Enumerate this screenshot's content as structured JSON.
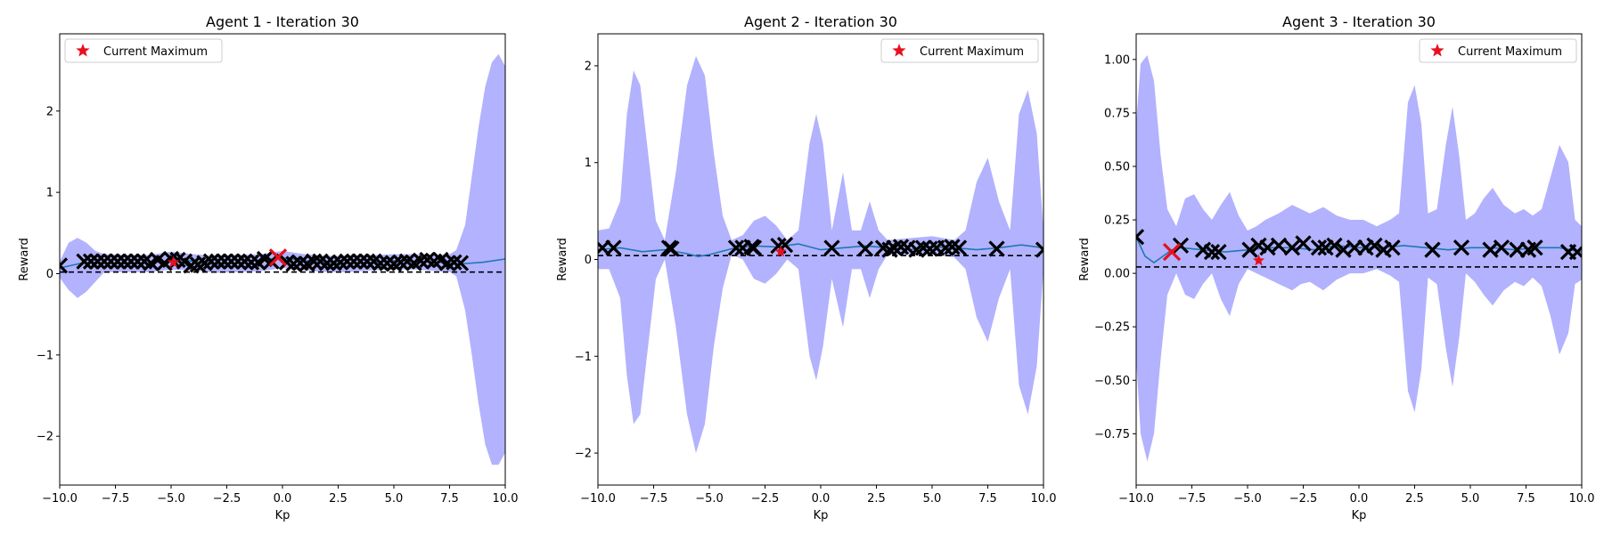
{
  "chart_data": [
    {
      "type": "line",
      "title": "Agent 1 - Iteration 30",
      "xlabel": "Kp",
      "ylabel": "Reward",
      "xlim": [
        -10,
        10
      ],
      "ylim": [
        -2.6,
        2.95
      ],
      "xticks": [
        -10,
        -7.5,
        -5,
        -2.5,
        0,
        2.5,
        5,
        7.5,
        10
      ],
      "xtick_labels": [
        "−10.0",
        "−7.5",
        "−5.0",
        "−2.5",
        "0.0",
        "2.5",
        "5.0",
        "7.5",
        "10.0"
      ],
      "yticks": [
        -2,
        -1,
        0,
        1,
        2
      ],
      "ytick_labels": [
        "−2",
        "−1",
        "0",
        "1",
        "2"
      ],
      "grid": false,
      "legend": {
        "entries": [
          "Current Maximum"
        ],
        "position": "top-left"
      },
      "colors": {
        "mean": "#1f77b4",
        "band": "#b2b2fe",
        "samples": "#000000",
        "maximum": "#e8101e",
        "latest": "#e8101e"
      },
      "baseline_y": 0.02,
      "mean_curve": {
        "x": [
          -10,
          -9.5,
          -9,
          -8.5,
          -8,
          -7,
          -6,
          -5,
          -4.5,
          -4,
          -3,
          -2,
          -1.5,
          -1,
          0,
          1,
          2,
          3,
          4,
          5,
          6,
          7,
          8,
          9,
          10
        ],
        "y": [
          0.07,
          0.1,
          0.13,
          0.14,
          0.13,
          0.12,
          0.13,
          0.16,
          0.17,
          0.15,
          0.11,
          0.13,
          0.16,
          0.17,
          0.19,
          0.16,
          0.13,
          0.13,
          0.14,
          0.16,
          0.15,
          0.14,
          0.12,
          0.14,
          0.18
        ]
      },
      "band": {
        "x": [
          -10,
          -9.6,
          -9.2,
          -8.8,
          -8.4,
          -8,
          -7,
          -6,
          -5,
          -4,
          -3,
          -2,
          -1,
          0,
          1,
          2,
          3,
          4,
          5,
          6,
          7,
          7.5,
          7.8,
          8.2,
          8.5,
          8.8,
          9.1,
          9.4,
          9.7,
          10
        ],
        "upper": [
          0.15,
          0.38,
          0.44,
          0.38,
          0.28,
          0.24,
          0.23,
          0.23,
          0.27,
          0.24,
          0.22,
          0.23,
          0.24,
          0.28,
          0.24,
          0.22,
          0.22,
          0.23,
          0.24,
          0.24,
          0.23,
          0.24,
          0.29,
          0.6,
          1.2,
          1.8,
          2.3,
          2.6,
          2.7,
          2.55
        ],
        "lower": [
          -0.05,
          -0.2,
          -0.3,
          -0.22,
          -0.1,
          0.02,
          0.02,
          0.02,
          0.05,
          0.04,
          0.01,
          0.02,
          0.03,
          0.07,
          0.04,
          0.02,
          0.02,
          0.04,
          0.05,
          0.05,
          0.03,
          0.02,
          -0.03,
          -0.45,
          -1.0,
          -1.6,
          -2.1,
          -2.35,
          -2.35,
          -2.2
        ]
      },
      "samples": {
        "x": [
          -10.0,
          -8.9,
          -8.6,
          -8.3,
          -8.0,
          -7.7,
          -7.4,
          -7.1,
          -6.8,
          -6.5,
          -6.2,
          -5.9,
          -5.6,
          -5.3,
          -5.0,
          -4.7,
          -4.4,
          -4.1,
          -3.8,
          -3.5,
          -3.2,
          -2.9,
          -2.6,
          -2.3,
          -2.0,
          -1.7,
          -1.4,
          -1.1,
          -0.8,
          -0.5,
          0.2,
          0.5,
          0.8,
          1.1,
          1.4,
          1.7,
          2.0,
          2.3,
          2.6,
          2.9,
          3.2,
          3.5,
          3.8,
          4.1,
          4.4,
          4.7,
          5.0,
          5.3,
          5.6,
          5.9,
          6.2,
          6.5,
          6.8,
          7.1,
          7.4,
          7.7,
          8.0
        ],
        "y": [
          0.1,
          0.15,
          0.15,
          0.15,
          0.15,
          0.15,
          0.15,
          0.15,
          0.15,
          0.15,
          0.15,
          0.13,
          0.17,
          0.13,
          0.18,
          0.17,
          0.15,
          0.1,
          0.11,
          0.13,
          0.15,
          0.15,
          0.15,
          0.15,
          0.15,
          0.15,
          0.14,
          0.14,
          0.18,
          0.15,
          0.14,
          0.12,
          0.13,
          0.12,
          0.15,
          0.15,
          0.13,
          0.13,
          0.14,
          0.15,
          0.15,
          0.15,
          0.15,
          0.15,
          0.13,
          0.13,
          0.12,
          0.14,
          0.15,
          0.13,
          0.16,
          0.17,
          0.15,
          0.17,
          0.13,
          0.14,
          0.13
        ]
      },
      "current_maximum": {
        "x": -4.9,
        "y": 0.14
      },
      "latest_sample": {
        "x": -0.2,
        "y": 0.2
      }
    },
    {
      "type": "line",
      "title": "Agent 2 - Iteration 30",
      "xlabel": "Kp",
      "ylabel": "Reward",
      "xlim": [
        -10,
        10
      ],
      "ylim": [
        -2.33,
        2.33
      ],
      "xticks": [
        -10,
        -7.5,
        -5,
        -2.5,
        0,
        2.5,
        5,
        7.5,
        10
      ],
      "xtick_labels": [
        "−10.0",
        "−7.5",
        "−5.0",
        "−2.5",
        "0.0",
        "2.5",
        "5.0",
        "7.5",
        "10.0"
      ],
      "yticks": [
        -2,
        -1,
        0,
        1,
        2
      ],
      "ytick_labels": [
        "−2",
        "−1",
        "0",
        "1",
        "2"
      ],
      "grid": false,
      "legend": {
        "entries": [
          "Current Maximum"
        ],
        "position": "top-right"
      },
      "colors": {
        "mean": "#1f77b4",
        "band": "#b2b2fe",
        "samples": "#000000",
        "maximum": "#e8101e"
      },
      "baseline_y": 0.04,
      "mean_curve": {
        "x": [
          -10,
          -9,
          -8,
          -7,
          -6,
          -5.5,
          -5,
          -4,
          -3,
          -2,
          -1,
          0,
          1,
          2,
          3,
          4,
          5,
          6,
          7,
          8,
          9,
          10
        ],
        "y": [
          0.1,
          0.12,
          0.08,
          0.1,
          0.06,
          0.03,
          0.05,
          0.11,
          0.14,
          0.13,
          0.16,
          0.1,
          0.12,
          0.14,
          0.12,
          0.1,
          0.13,
          0.12,
          0.1,
          0.12,
          0.15,
          0.12
        ]
      },
      "band": {
        "x": [
          -10,
          -9.5,
          -9,
          -8.7,
          -8.4,
          -8.1,
          -7.8,
          -7.4,
          -7.0,
          -6.5,
          -6.0,
          -5.6,
          -5.2,
          -4.8,
          -4.4,
          -4.0,
          -3.5,
          -3.0,
          -2.5,
          -2.0,
          -1.5,
          -1.0,
          -0.5,
          -0.2,
          0.1,
          0.5,
          1.0,
          1.4,
          1.8,
          2.2,
          2.6,
          3.0,
          4.0,
          5.0,
          6.0,
          6.5,
          7.0,
          7.5,
          8.0,
          8.5,
          8.9,
          9.3,
          9.7,
          10
        ],
        "upper": [
          0.3,
          0.32,
          0.6,
          1.5,
          1.95,
          1.8,
          1.2,
          0.4,
          0.2,
          0.9,
          1.8,
          2.1,
          1.9,
          1.1,
          0.45,
          0.2,
          0.25,
          0.4,
          0.45,
          0.35,
          0.2,
          0.3,
          1.2,
          1.5,
          1.2,
          0.3,
          0.9,
          0.3,
          0.3,
          0.6,
          0.3,
          0.2,
          0.22,
          0.24,
          0.2,
          0.3,
          0.8,
          1.05,
          0.6,
          0.3,
          1.5,
          1.75,
          1.3,
          0.3
        ],
        "lower": [
          -0.1,
          -0.1,
          -0.4,
          -1.2,
          -1.7,
          -1.6,
          -1.0,
          -0.2,
          0.0,
          -0.7,
          -1.6,
          -2.0,
          -1.7,
          -0.9,
          -0.3,
          0.05,
          0.0,
          -0.2,
          -0.25,
          -0.15,
          0.0,
          -0.1,
          -1.0,
          -1.25,
          -0.9,
          -0.2,
          -0.7,
          -0.1,
          -0.1,
          -0.4,
          -0.1,
          0.05,
          0.05,
          0.05,
          0.02,
          -0.1,
          -0.6,
          -0.85,
          -0.4,
          -0.1,
          -1.3,
          -1.6,
          -1.1,
          -0.1
        ]
      },
      "samples": {
        "x": [
          -9.8,
          -9.3,
          -6.8,
          -6.7,
          -3.8,
          -3.5,
          -3.1,
          -3.0,
          -1.9,
          -1.6,
          0.5,
          2.0,
          2.8,
          3.1,
          3.3,
          3.6,
          3.9,
          4.3,
          4.6,
          4.9,
          5.2,
          5.6,
          5.9,
          6.2,
          7.9,
          10.0
        ],
        "y": [
          0.12,
          0.12,
          0.12,
          0.11,
          0.12,
          0.12,
          0.13,
          0.12,
          0.14,
          0.15,
          0.12,
          0.11,
          0.12,
          0.1,
          0.12,
          0.13,
          0.12,
          0.1,
          0.12,
          0.11,
          0.12,
          0.12,
          0.13,
          0.12,
          0.11,
          0.1
        ]
      },
      "current_maximum": {
        "x": -1.8,
        "y": 0.08
      }
    },
    {
      "type": "line",
      "title": "Agent 3 - Iteration 30",
      "xlabel": "Kp",
      "ylabel": "Reward",
      "xlim": [
        -10,
        10
      ],
      "ylim": [
        -0.99,
        1.12
      ],
      "xticks": [
        -10,
        -7.5,
        -5,
        -2.5,
        0,
        2.5,
        5,
        7.5,
        10
      ],
      "xtick_labels": [
        "−10.0",
        "−7.5",
        "−5.0",
        "−2.5",
        "0.0",
        "2.5",
        "5.0",
        "7.5",
        "10.0"
      ],
      "yticks": [
        -0.75,
        -0.5,
        -0.25,
        0,
        0.25,
        0.5,
        0.75,
        1.0
      ],
      "ytick_labels": [
        "−0.75",
        "−0.50",
        "−0.25",
        "0.00",
        "0.25",
        "0.50",
        "0.75",
        "1.00"
      ],
      "grid": false,
      "legend": {
        "entries": [
          "Current Maximum"
        ],
        "position": "top-right"
      },
      "colors": {
        "mean": "#1f77b4",
        "band": "#b2b2fe",
        "samples": "#000000",
        "maximum": "#e8101e",
        "latest": "#e8101e"
      },
      "baseline_y": 0.03,
      "mean_curve": {
        "x": [
          -10,
          -9.6,
          -9.2,
          -8.8,
          -8.4,
          -8,
          -7,
          -6,
          -5,
          -4,
          -3,
          -2,
          -1,
          0,
          1,
          2,
          3,
          4,
          5,
          6,
          7,
          8,
          9,
          10
        ],
        "y": [
          0.17,
          0.08,
          0.05,
          0.08,
          0.11,
          0.12,
          0.11,
          0.1,
          0.11,
          0.12,
          0.12,
          0.11,
          0.13,
          0.12,
          0.12,
          0.13,
          0.12,
          0.11,
          0.12,
          0.12,
          0.11,
          0.12,
          0.12,
          0.1
        ]
      },
      "band": {
        "x": [
          -10,
          -9.8,
          -9.5,
          -9.2,
          -8.9,
          -8.6,
          -8.2,
          -7.8,
          -7.4,
          -7.0,
          -6.6,
          -6.2,
          -5.8,
          -5.4,
          -5.0,
          -4.6,
          -4.2,
          -3.6,
          -3.0,
          -2.6,
          -2.2,
          -1.6,
          -1.0,
          -0.4,
          0.2,
          0.8,
          1.4,
          1.8,
          2.2,
          2.5,
          2.8,
          3.1,
          3.5,
          3.9,
          4.2,
          4.5,
          4.8,
          5.2,
          5.6,
          6.0,
          6.5,
          7.0,
          7.4,
          7.8,
          8.2,
          8.6,
          9.0,
          9.4,
          9.7,
          10
        ],
        "upper": [
          0.7,
          0.98,
          1.02,
          0.9,
          0.55,
          0.3,
          0.22,
          0.35,
          0.37,
          0.3,
          0.25,
          0.32,
          0.38,
          0.27,
          0.2,
          0.22,
          0.25,
          0.28,
          0.32,
          0.3,
          0.28,
          0.31,
          0.27,
          0.25,
          0.25,
          0.22,
          0.25,
          0.28,
          0.8,
          0.88,
          0.7,
          0.28,
          0.3,
          0.6,
          0.78,
          0.55,
          0.25,
          0.28,
          0.35,
          0.4,
          0.32,
          0.28,
          0.3,
          0.27,
          0.3,
          0.45,
          0.6,
          0.52,
          0.25,
          0.22
        ],
        "lower": [
          -0.4,
          -0.75,
          -0.88,
          -0.75,
          -0.4,
          -0.1,
          0.0,
          -0.1,
          -0.12,
          -0.05,
          0.0,
          -0.12,
          -0.2,
          -0.05,
          0.02,
          0.0,
          -0.02,
          -0.05,
          -0.08,
          -0.05,
          -0.04,
          -0.08,
          -0.03,
          0.0,
          0.0,
          0.02,
          -0.01,
          -0.04,
          -0.55,
          -0.65,
          -0.45,
          -0.02,
          -0.05,
          -0.35,
          -0.53,
          -0.3,
          0.0,
          -0.04,
          -0.1,
          -0.15,
          -0.08,
          -0.04,
          -0.06,
          -0.02,
          -0.06,
          -0.2,
          -0.38,
          -0.28,
          -0.05,
          -0.03
        ]
      },
      "samples": {
        "x": [
          -10.0,
          -8.0,
          -7.0,
          -6.6,
          -6.3,
          -4.9,
          -4.5,
          -4.1,
          -3.6,
          -3.0,
          -2.5,
          -1.8,
          -1.5,
          -1.1,
          -0.7,
          -0.2,
          0.3,
          0.7,
          1.1,
          1.5,
          3.3,
          4.6,
          5.9,
          6.4,
          7.1,
          7.6,
          7.9,
          9.4,
          9.8
        ],
        "y": [
          0.17,
          0.13,
          0.11,
          0.1,
          0.1,
          0.11,
          0.13,
          0.12,
          0.13,
          0.12,
          0.14,
          0.12,
          0.12,
          0.13,
          0.11,
          0.12,
          0.12,
          0.13,
          0.11,
          0.12,
          0.11,
          0.12,
          0.11,
          0.12,
          0.11,
          0.11,
          0.12,
          0.1,
          0.1
        ]
      },
      "current_maximum": {
        "x": -4.5,
        "y": 0.06
      },
      "latest_sample": {
        "x": -8.4,
        "y": 0.1
      }
    }
  ]
}
